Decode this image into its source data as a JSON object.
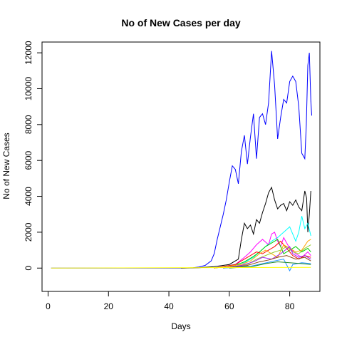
{
  "chart_data": {
    "type": "line",
    "title": "No of New Cases per day",
    "xlabel": "Days",
    "ylabel": "No of New Cases",
    "xlim": [
      -2,
      90
    ],
    "ylim": [
      -1300,
      12600
    ],
    "xticks": [
      0,
      20,
      40,
      60,
      80
    ],
    "yticks": [
      0,
      2000,
      4000,
      6000,
      8000,
      10000,
      12000
    ],
    "grid": false,
    "legend": "none",
    "series": [
      {
        "color": "#0000ff",
        "points": [
          [
            1,
            0
          ],
          [
            44,
            0
          ],
          [
            48,
            20
          ],
          [
            50,
            60
          ],
          [
            52,
            150
          ],
          [
            54,
            400
          ],
          [
            55,
            800
          ],
          [
            56,
            1600
          ],
          [
            57,
            2300
          ],
          [
            58,
            3000
          ],
          [
            59,
            3800
          ],
          [
            60,
            4800
          ],
          [
            61,
            5700
          ],
          [
            62,
            5500
          ],
          [
            63,
            4700
          ],
          [
            64,
            6500
          ],
          [
            65,
            7400
          ],
          [
            66,
            5800
          ],
          [
            67,
            7300
          ],
          [
            68,
            8600
          ],
          [
            69,
            6100
          ],
          [
            70,
            8400
          ],
          [
            71,
            8600
          ],
          [
            72,
            8000
          ],
          [
            73,
            9200
          ],
          [
            74,
            12100
          ],
          [
            75,
            10200
          ],
          [
            76,
            7200
          ],
          [
            77,
            8400
          ],
          [
            78,
            9400
          ],
          [
            79,
            9200
          ],
          [
            80,
            10400
          ],
          [
            81,
            10700
          ],
          [
            82,
            10400
          ],
          [
            83,
            9000
          ],
          [
            84,
            6400
          ],
          [
            85,
            6100
          ],
          [
            85.5,
            8000
          ],
          [
            86,
            11300
          ],
          [
            86.5,
            12000
          ],
          [
            87,
            9300
          ],
          [
            87.3,
            8500
          ]
        ]
      },
      {
        "color": "#000000",
        "points": [
          [
            44,
            0
          ],
          [
            50,
            20
          ],
          [
            55,
            80
          ],
          [
            60,
            200
          ],
          [
            63,
            500
          ],
          [
            64,
            1600
          ],
          [
            65,
            2500
          ],
          [
            66,
            2200
          ],
          [
            67,
            2400
          ],
          [
            68,
            1900
          ],
          [
            69,
            2700
          ],
          [
            70,
            2500
          ],
          [
            71,
            3100
          ],
          [
            72,
            3600
          ],
          [
            73,
            4200
          ],
          [
            74,
            4500
          ],
          [
            75,
            3800
          ],
          [
            76,
            3300
          ],
          [
            77,
            3500
          ],
          [
            78,
            3600
          ],
          [
            79,
            3200
          ],
          [
            80,
            3700
          ],
          [
            81,
            3500
          ],
          [
            82,
            3800
          ],
          [
            83,
            3400
          ],
          [
            84,
            3200
          ],
          [
            85,
            4300
          ],
          [
            85.6,
            3900
          ],
          [
            86,
            2000
          ],
          [
            86.5,
            3000
          ],
          [
            87,
            4300
          ]
        ]
      },
      {
        "color": "#00ffff",
        "points": [
          [
            55,
            0
          ],
          [
            65,
            300
          ],
          [
            68,
            600
          ],
          [
            70,
            900
          ],
          [
            72,
            1200
          ],
          [
            74,
            1500
          ],
          [
            76,
            1700
          ],
          [
            78,
            2000
          ],
          [
            80,
            2300
          ],
          [
            81,
            1900
          ],
          [
            82,
            1500
          ],
          [
            83,
            2000
          ],
          [
            84,
            2900
          ],
          [
            85,
            2200
          ],
          [
            86,
            2500
          ],
          [
            87,
            1800
          ]
        ]
      },
      {
        "color": "#ff00ff",
        "points": [
          [
            55,
            0
          ],
          [
            62,
            200
          ],
          [
            65,
            600
          ],
          [
            67,
            900
          ],
          [
            69,
            1300
          ],
          [
            71,
            1600
          ],
          [
            73,
            1300
          ],
          [
            74,
            1900
          ],
          [
            75,
            2000
          ],
          [
            76,
            1500
          ],
          [
            77,
            1200
          ],
          [
            78,
            1700
          ],
          [
            79,
            1400
          ],
          [
            80,
            1100
          ],
          [
            82,
            800
          ],
          [
            84,
            600
          ],
          [
            86,
            900
          ],
          [
            87,
            700
          ]
        ]
      },
      {
        "color": "#00cd00",
        "points": [
          [
            55,
            0
          ],
          [
            62,
            150
          ],
          [
            65,
            350
          ],
          [
            68,
            650
          ],
          [
            70,
            900
          ],
          [
            72,
            1200
          ],
          [
            74,
            1400
          ],
          [
            76,
            1600
          ],
          [
            77,
            1200
          ],
          [
            78,
            800
          ],
          [
            80,
            1000
          ],
          [
            82,
            1200
          ],
          [
            84,
            900
          ],
          [
            86,
            1100
          ],
          [
            87,
            900
          ]
        ]
      },
      {
        "color": "#ff0000",
        "points": [
          [
            55,
            0
          ],
          [
            62,
            200
          ],
          [
            65,
            500
          ],
          [
            67,
            700
          ],
          [
            69,
            900
          ],
          [
            71,
            800
          ],
          [
            73,
            1000
          ],
          [
            75,
            1200
          ],
          [
            77,
            1500
          ],
          [
            79,
            1100
          ],
          [
            81,
            700
          ],
          [
            83,
            500
          ],
          [
            85,
            700
          ],
          [
            87,
            600
          ]
        ]
      },
      {
        "color": "#ffa500",
        "points": [
          [
            55,
            0
          ],
          [
            64,
            200
          ],
          [
            67,
            400
          ],
          [
            70,
            800
          ],
          [
            72,
            1000
          ],
          [
            74,
            800
          ],
          [
            76,
            600
          ],
          [
            78,
            1300
          ],
          [
            80,
            1100
          ],
          [
            82,
            900
          ],
          [
            84,
            1000
          ],
          [
            86,
            1500
          ],
          [
            87,
            1600
          ]
        ]
      },
      {
        "color": "#9acd32",
        "points": [
          [
            58,
            0
          ],
          [
            66,
            200
          ],
          [
            69,
            500
          ],
          [
            72,
            700
          ],
          [
            75,
            900
          ],
          [
            77,
            1000
          ],
          [
            79,
            1200
          ],
          [
            81,
            900
          ],
          [
            83,
            800
          ],
          [
            85,
            1100
          ],
          [
            87,
            1300
          ]
        ]
      },
      {
        "color": "#a020f0",
        "points": [
          [
            58,
            0
          ],
          [
            64,
            150
          ],
          [
            68,
            350
          ],
          [
            71,
            600
          ],
          [
            74,
            500
          ],
          [
            77,
            800
          ],
          [
            80,
            1200
          ],
          [
            81,
            800
          ],
          [
            83,
            600
          ],
          [
            85,
            700
          ],
          [
            87,
            500
          ]
        ]
      },
      {
        "color": "#8b4513",
        "points": [
          [
            58,
            0
          ],
          [
            66,
            150
          ],
          [
            70,
            350
          ],
          [
            73,
            450
          ],
          [
            76,
            600
          ],
          [
            79,
            700
          ],
          [
            82,
            500
          ],
          [
            85,
            600
          ],
          [
            87,
            400
          ]
        ]
      },
      {
        "color": "#1e90ff",
        "points": [
          [
            58,
            0
          ],
          [
            67,
            100
          ],
          [
            71,
            250
          ],
          [
            75,
            400
          ],
          [
            78,
            500
          ],
          [
            80,
            -150
          ],
          [
            81,
            200
          ],
          [
            84,
            300
          ],
          [
            87,
            250
          ]
        ]
      },
      {
        "color": "#228b22",
        "points": [
          [
            60,
            0
          ],
          [
            68,
            100
          ],
          [
            72,
            250
          ],
          [
            76,
            350
          ],
          [
            80,
            300
          ],
          [
            84,
            250
          ],
          [
            87,
            200
          ]
        ]
      },
      {
        "color": "#ffff00",
        "points": [
          [
            1,
            0
          ],
          [
            87,
            40
          ]
        ]
      }
    ]
  }
}
